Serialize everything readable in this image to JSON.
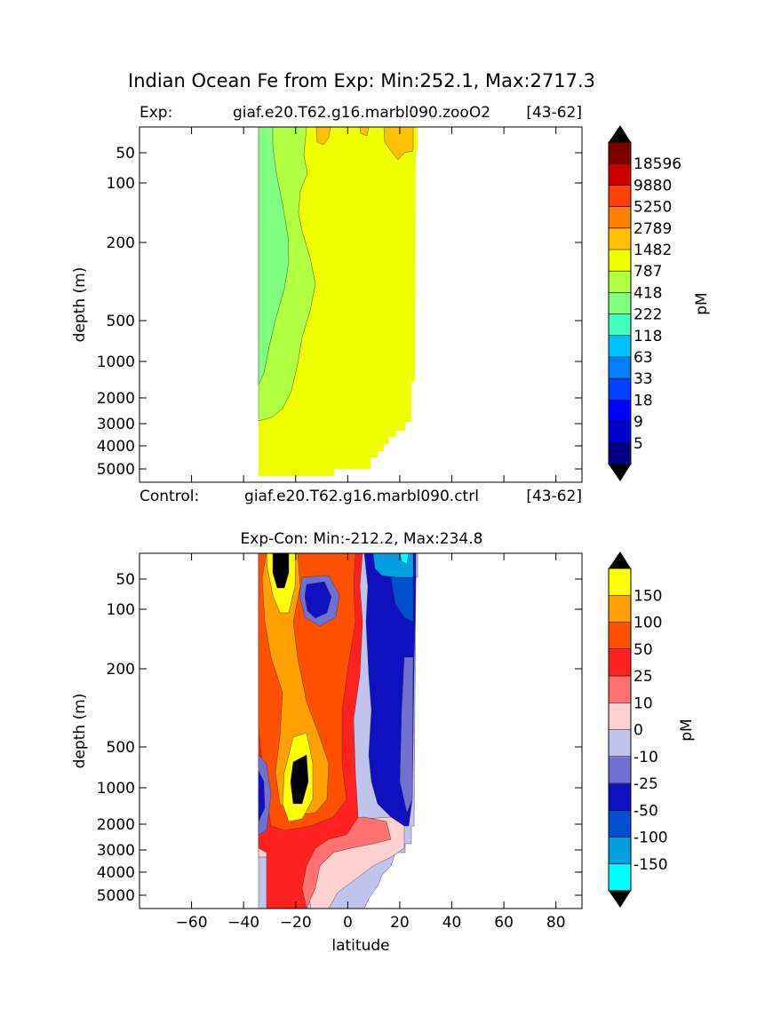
{
  "figure": {
    "suptitle": "Indian Ocean Fe from Exp: Min:252.1, Max:2717.3"
  },
  "chart_data": [
    {
      "type": "heatmap",
      "title_left": "Exp:",
      "title_center": "giaf.e20.T62.g16.marbl090.zooO2",
      "title_right": "[43-62]",
      "subtitle_left": "Control:",
      "subtitle_center": "giaf.e20.T62.g16.marbl090.ctrl",
      "subtitle_right": "[43-62]",
      "ylabel": "depth (m)",
      "xlim": [
        -80,
        90
      ],
      "y_ticks": [
        "50",
        "100",
        "200",
        "500",
        "1000",
        "2000",
        "3000",
        "4000",
        "5000"
      ],
      "y_scale": "nonlinear depth (log-like)",
      "colorbar": {
        "label": "pM",
        "levels": [
          "5",
          "9",
          "18",
          "33",
          "63",
          "118",
          "222",
          "418",
          "787",
          "1482",
          "2789",
          "5250",
          "9880",
          "18596"
        ],
        "colors": [
          "#000080",
          "#0000cc",
          "#0000ff",
          "#0040ff",
          "#0080ff",
          "#00c0ff",
          "#40ffc0",
          "#80ff80",
          "#b0ff40",
          "#f0ff00",
          "#ffc000",
          "#ff8000",
          "#ff4000",
          "#cc0000",
          "#800000"
        ],
        "extend": "both"
      },
      "regions": [
        {
          "name": "222-418 (green)",
          "color": "#80ff80"
        },
        {
          "name": "418-787 (light green)",
          "color": "#b0ff40"
        },
        {
          "name": "787-1482 (yellow)",
          "color": "#f0ff00"
        },
        {
          "name": "1482-2789 (orange)",
          "color": "#ffc000"
        }
      ]
    },
    {
      "type": "heatmap",
      "title": "Exp-Con: Min:-212.2, Max:234.8",
      "xlabel": "latitude",
      "ylabel": "depth (m)",
      "xlim": [
        -80,
        90
      ],
      "x_ticks": [
        "−60",
        "−40",
        "−20",
        "0",
        "20",
        "40",
        "60",
        "80"
      ],
      "y_ticks": [
        "50",
        "100",
        "200",
        "500",
        "1000",
        "2000",
        "3000",
        "4000",
        "5000"
      ],
      "colorbar": {
        "label": "pM",
        "levels": [
          "-150",
          "-100",
          "-50",
          "-25",
          "-10",
          "0",
          "10",
          "25",
          "50",
          "100",
          "150"
        ],
        "colors": [
          "#00ffff",
          "#00a0e0",
          "#0050d0",
          "#1010c0",
          "#7070d0",
          "#c0c4ec",
          "#ffd0d0",
          "#ff7070",
          "#ff2020",
          "#ff5000",
          "#ffa000",
          "#ffff00"
        ],
        "extend": "both"
      }
    }
  ]
}
